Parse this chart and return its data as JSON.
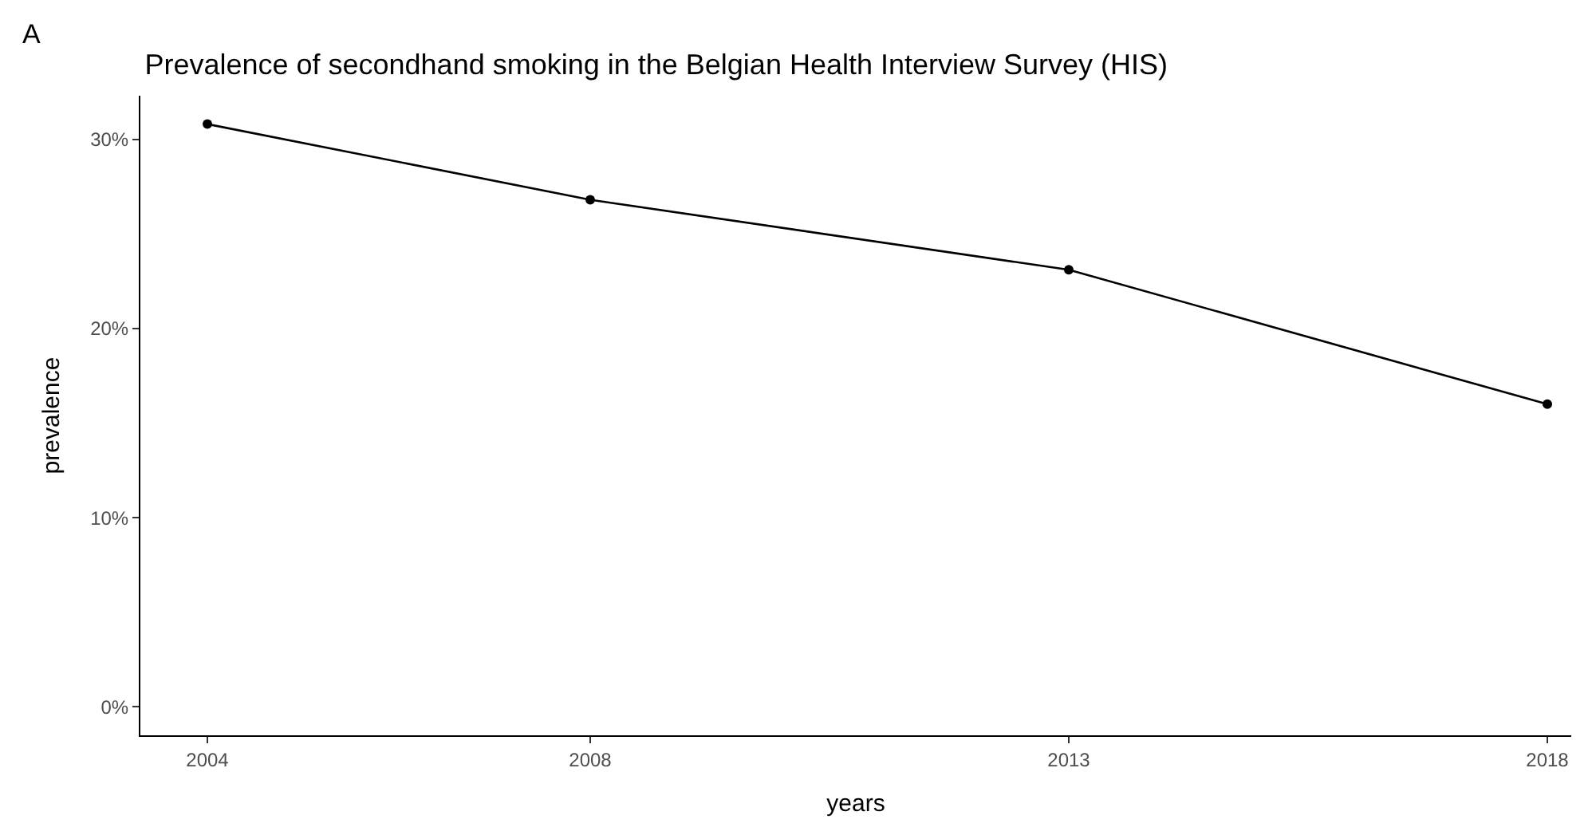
{
  "chart_data": {
    "type": "line",
    "title": "Prevalence of secondhand smoking in the Belgian Health Interview Survey (HIS)",
    "xlabel": "years",
    "ylabel": "prevalence",
    "annotations": [
      "A"
    ],
    "x": [
      2004,
      2008,
      2013,
      2018
    ],
    "series": [
      {
        "color": "#000000",
        "values": [
          30.8,
          26.8,
          23.1,
          16.0
        ]
      }
    ],
    "xlim": [
      2003.3,
      2018.25
    ],
    "xticks": [
      2004,
      2008,
      2013,
      2018
    ],
    "ylim": [
      -1.5,
      32.3
    ],
    "yticks": [
      {
        "value": 0,
        "label": "0%"
      },
      {
        "value": 10,
        "label": "10%"
      },
      {
        "value": 20,
        "label": "20%"
      },
      {
        "value": 30,
        "label": "30%"
      }
    ],
    "marker": "circle",
    "line_style": "solid"
  }
}
